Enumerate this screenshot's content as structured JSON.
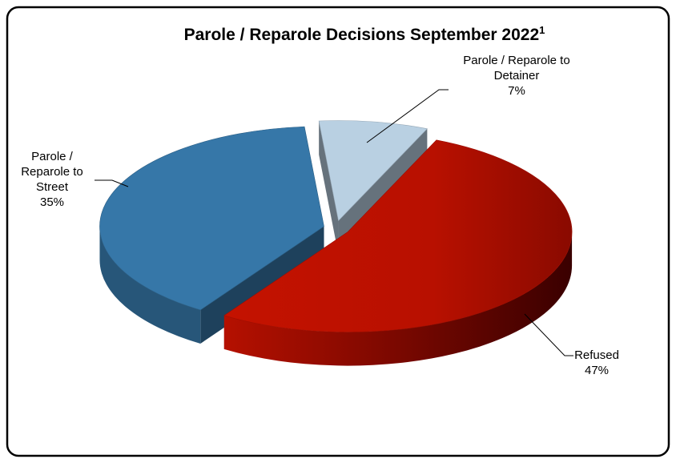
{
  "chart_data": {
    "type": "pie",
    "title": "Parole / Reparole Decisions September 2022",
    "title_footnote": "1",
    "categories": [
      "Parole / Reparole to Detainer",
      "Refused",
      "Parole / Reparole to Street"
    ],
    "values": [
      7,
      47,
      35
    ],
    "value_labels": [
      "7%",
      "47%",
      "35%"
    ],
    "colors": [
      "#b9d0e2",
      "#c41200",
      "#3677a8"
    ]
  }
}
